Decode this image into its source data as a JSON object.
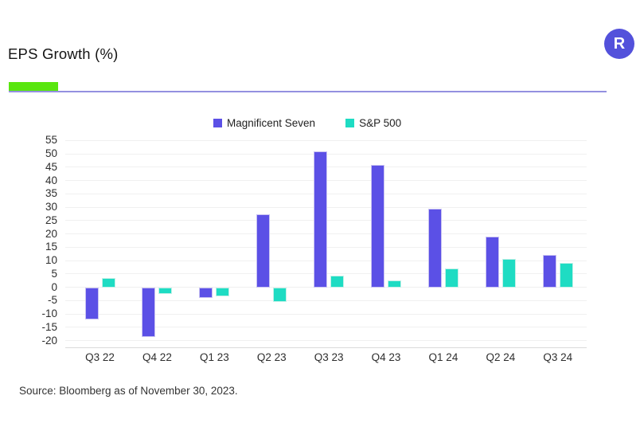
{
  "header": {
    "title": "EPS Growth (%)",
    "logo_letter": "R",
    "logo_color": "#5351DB"
  },
  "accent": {
    "bar_color": "#59E60F",
    "rule_color": "#9490E0"
  },
  "source_note": "Source: Bloomberg as of November 30, 2023.",
  "chart_data": {
    "type": "bar",
    "title": "EPS Growth (%)",
    "categories": [
      "Q3 22",
      "Q4 22",
      "Q1 23",
      "Q2 23",
      "Q3 23",
      "Q4 23",
      "Q1 24",
      "Q2 24",
      "Q3 24"
    ],
    "series": [
      {
        "name": "Magnificent Seven",
        "color": "#5B50E6",
        "values": [
          -12,
          -18.5,
          -4,
          27.5,
          51,
          46,
          29.5,
          19,
          12
        ]
      },
      {
        "name": "S&P 500",
        "color": "#1EDCC3",
        "values": [
          3.5,
          -2.5,
          -3.5,
          -5.5,
          4.5,
          2.5,
          7,
          10.5,
          9
        ]
      }
    ],
    "xlabel": "",
    "ylabel": "",
    "y_ticks": [
      55,
      50,
      45,
      40,
      35,
      30,
      25,
      20,
      15,
      10,
      5,
      0,
      -5,
      -10,
      -15,
      -20
    ],
    "ylim": [
      -22.5,
      57.5
    ],
    "grid": true,
    "legend_position": "top-center"
  }
}
